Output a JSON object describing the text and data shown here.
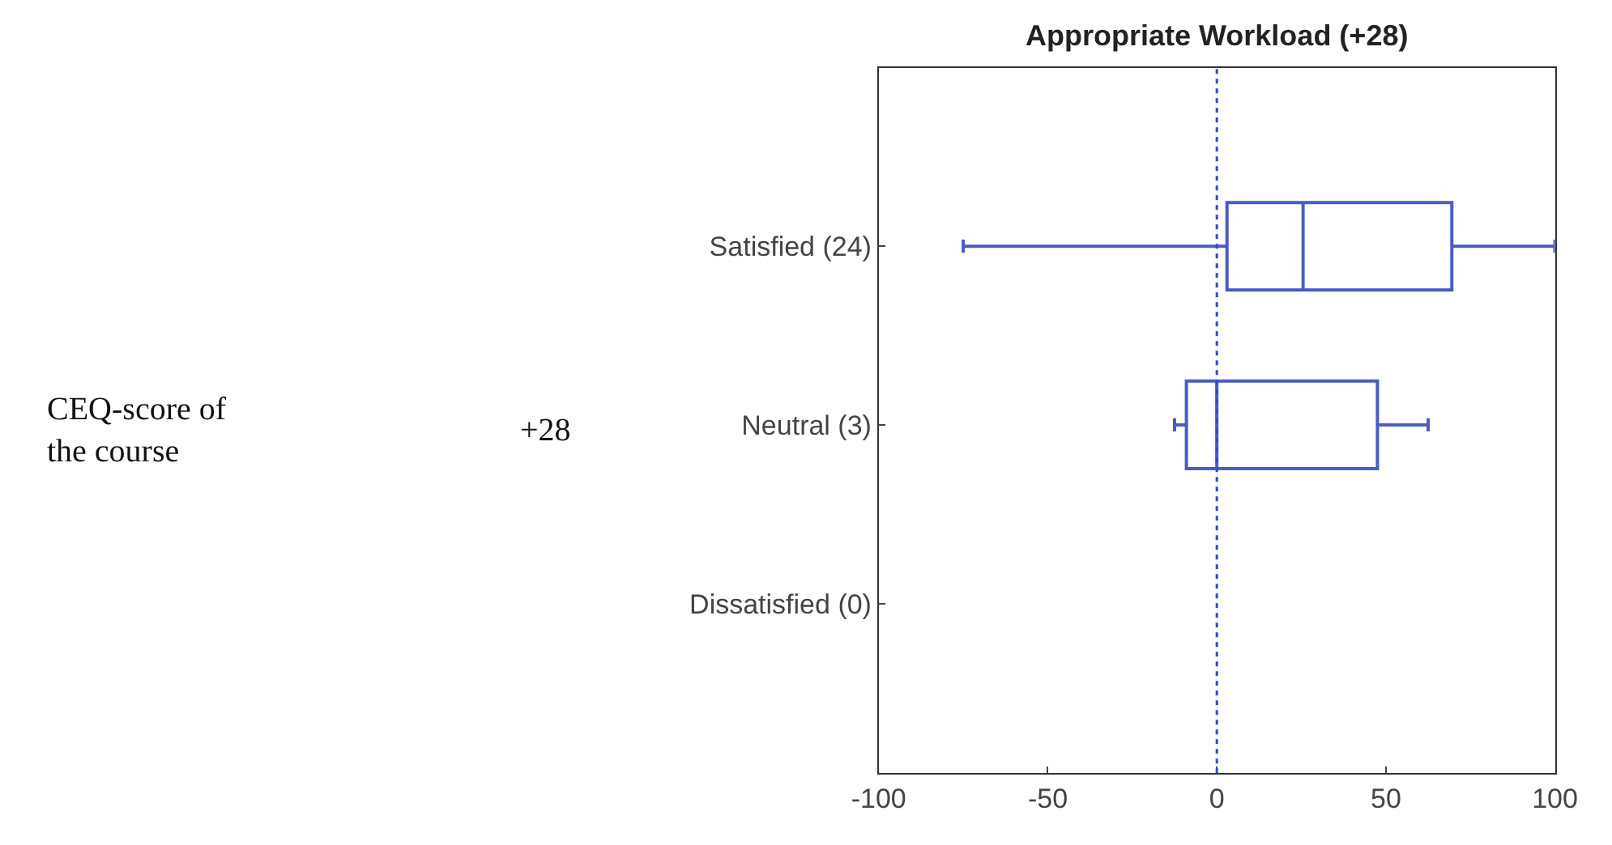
{
  "chart_data": [
    {
      "type": "other",
      "annotations": [
        "CEQ-score of the course",
        "+28"
      ]
    },
    {
      "type": "box",
      "orientation": "horizontal",
      "title": "Appropriate Workload (+28)",
      "categories": [
        "Satisfied (24)",
        "Neutral (3)",
        "Dissatisfied (0)"
      ],
      "boxes": [
        {
          "low": -75,
          "q1": 3,
          "median": 25.5,
          "q3": 69.5,
          "high": 100
        },
        {
          "low": -12.5,
          "q1": -9,
          "median": 0,
          "q3": 47.5,
          "high": 62.5
        },
        null
      ],
      "color": "#4a5bc4",
      "xlim": [
        -100,
        100
      ],
      "xticks": [
        -100,
        -50,
        0,
        50,
        100
      ],
      "ref_lines": [
        {
          "axis": "x",
          "value": 0,
          "color": "#3344dd",
          "line_style": "dotted"
        }
      ]
    }
  ]
}
